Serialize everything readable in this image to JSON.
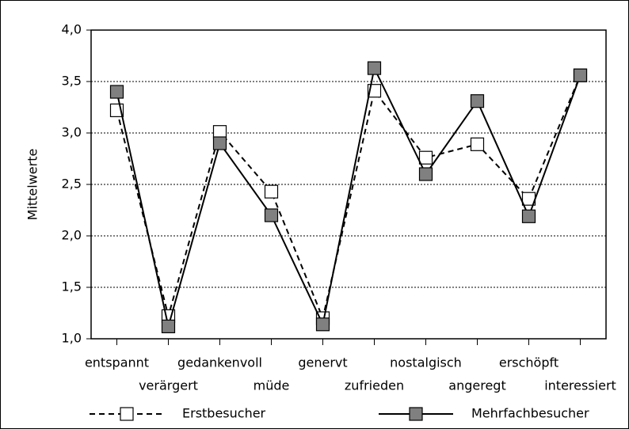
{
  "chart_data": {
    "type": "line",
    "ylabel": "Mittelwerte",
    "categories": [
      "entspannt",
      "verärgert",
      "gedankenvoll",
      "müde",
      "genervt",
      "zufrieden",
      "nostalgisch",
      "angeregt",
      "erschöpft",
      "interessiert"
    ],
    "series": [
      {
        "name": "Erstbesucher",
        "color": "#ffffff",
        "line_style": "dashed",
        "values": [
          3.22,
          1.22,
          3.01,
          2.43,
          1.2,
          3.41,
          2.76,
          2.89,
          2.36,
          3.56
        ]
      },
      {
        "name": "Mehrfachbesucher",
        "color": "#808080",
        "line_style": "solid",
        "values": [
          3.4,
          1.12,
          2.9,
          2.2,
          1.14,
          3.63,
          2.6,
          3.31,
          2.19,
          3.56
        ]
      }
    ],
    "ylim": [
      1.0,
      4.0
    ],
    "yticks": [
      {
        "value": 1.0,
        "label": "1,0"
      },
      {
        "value": 1.5,
        "label": "1,5"
      },
      {
        "value": 2.0,
        "label": "2,0"
      },
      {
        "value": 2.5,
        "label": "2,5"
      },
      {
        "value": 3.0,
        "label": "3,0"
      },
      {
        "value": 3.5,
        "label": "3,5"
      },
      {
        "value": 4.0,
        "label": "4,0"
      }
    ],
    "grid": true,
    "legend": "bottom"
  }
}
